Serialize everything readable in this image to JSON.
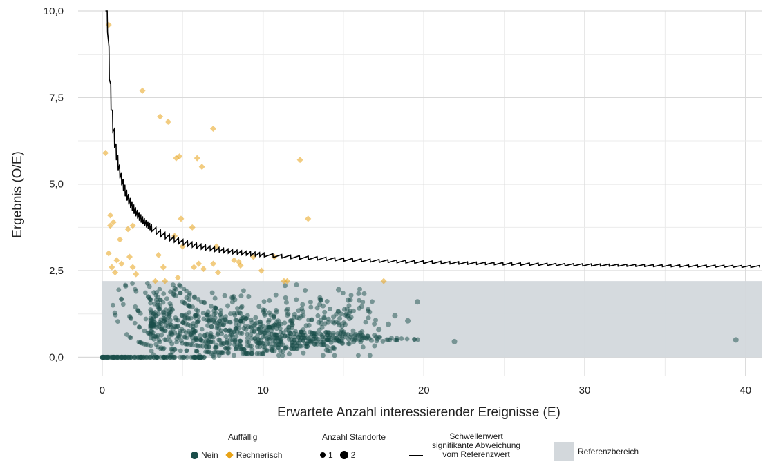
{
  "chart_data": {
    "type": "scatter",
    "xlabel": "Erwartete Anzahl interessierender Ereignisse (E)",
    "ylabel": "Ergebnis (O/E)",
    "xlim": [
      -1.5,
      41
    ],
    "ylim": [
      -0.55,
      10.0
    ],
    "x_ticks": [
      0,
      10,
      20,
      30,
      40
    ],
    "x_tick_labels": [
      "0",
      "10",
      "20",
      "30",
      "40"
    ],
    "y_ticks": [
      0,
      2.5,
      5.0,
      7.5,
      10.0
    ],
    "y_tick_labels": [
      "0,0",
      "2,5",
      "5,0",
      "7,5",
      "10,0"
    ],
    "grid": true,
    "reference_range": {
      "label": "Referenzbereich",
      "x": [
        0,
        41
      ],
      "y": [
        0,
        2.2
      ],
      "color": "#d3d8dc"
    },
    "threshold_line": {
      "label": "Schwellenwert signifikante Abweichung vom Referenzwert",
      "note": "curve approx. O/E threshold; sawtooth from discrete counts",
      "color": "#000000"
    },
    "series": [
      {
        "name": "Nein",
        "marker": "circle",
        "color": "#1a4d4a"
      },
      {
        "name": "Rechnerisch",
        "marker": "diamond",
        "color": "#e8a317",
        "points": [
          [
            0.2,
            5.9
          ],
          [
            0.4,
            9.6
          ],
          [
            2.5,
            7.7
          ],
          [
            3.6,
            6.95
          ],
          [
            4.1,
            6.8
          ],
          [
            6.9,
            6.6
          ],
          [
            4.6,
            5.75
          ],
          [
            4.8,
            5.8
          ],
          [
            5.9,
            5.75
          ],
          [
            6.2,
            5.5
          ],
          [
            12.3,
            5.7
          ],
          [
            12.8,
            4.0
          ],
          [
            0.5,
            4.1
          ],
          [
            0.4,
            3.0
          ],
          [
            0.5,
            3.8
          ],
          [
            0.7,
            3.9
          ],
          [
            1.1,
            3.4
          ],
          [
            1.6,
            3.7
          ],
          [
            1.9,
            3.8
          ],
          [
            0.6,
            2.6
          ],
          [
            0.9,
            2.8
          ],
          [
            1.2,
            2.7
          ],
          [
            1.7,
            2.9
          ],
          [
            1.9,
            2.6
          ],
          [
            2.1,
            2.4
          ],
          [
            0.8,
            2.45
          ],
          [
            3.5,
            2.95
          ],
          [
            3.8,
            2.6
          ],
          [
            4.5,
            3.5
          ],
          [
            4.9,
            4.0
          ],
          [
            5.0,
            3.2
          ],
          [
            5.6,
            3.75
          ],
          [
            5.7,
            2.6
          ],
          [
            6.0,
            2.7
          ],
          [
            6.3,
            2.55
          ],
          [
            6.9,
            2.7
          ],
          [
            7.1,
            3.2
          ],
          [
            4.7,
            2.3
          ],
          [
            3.3,
            2.2
          ],
          [
            3.9,
            2.2
          ],
          [
            8.2,
            2.8
          ],
          [
            8.5,
            2.75
          ],
          [
            8.6,
            2.65
          ],
          [
            9.4,
            2.9
          ],
          [
            9.9,
            2.5
          ],
          [
            10.7,
            2.9
          ],
          [
            11.3,
            2.2
          ],
          [
            11.5,
            2.2
          ],
          [
            17.5,
            2.2
          ],
          [
            7.2,
            2.45
          ]
        ]
      }
    ],
    "size_legend": {
      "title": "Anzahl Standorte",
      "values": [
        "1",
        "2"
      ]
    },
    "color_legend": {
      "title": "Auffällig",
      "values": [
        "Nein",
        "Rechnerisch"
      ]
    }
  },
  "legend": {
    "color_title": "Auffällig",
    "nein": "Nein",
    "rechnerisch": "Rechnerisch",
    "size_title": "Anzahl Standorte",
    "size_1": "1",
    "size_2": "2",
    "line_title": "Schwellenwert",
    "line_sub1": "signifikante Abweichung",
    "line_sub2": "vom Referenzwert",
    "ref_label": "Referenzbereich"
  },
  "colors": {
    "nein": "#1a4d4a",
    "rechnerisch": "#e8a317",
    "reference": "#d3d8dc",
    "grid": "#d9d9d9"
  }
}
